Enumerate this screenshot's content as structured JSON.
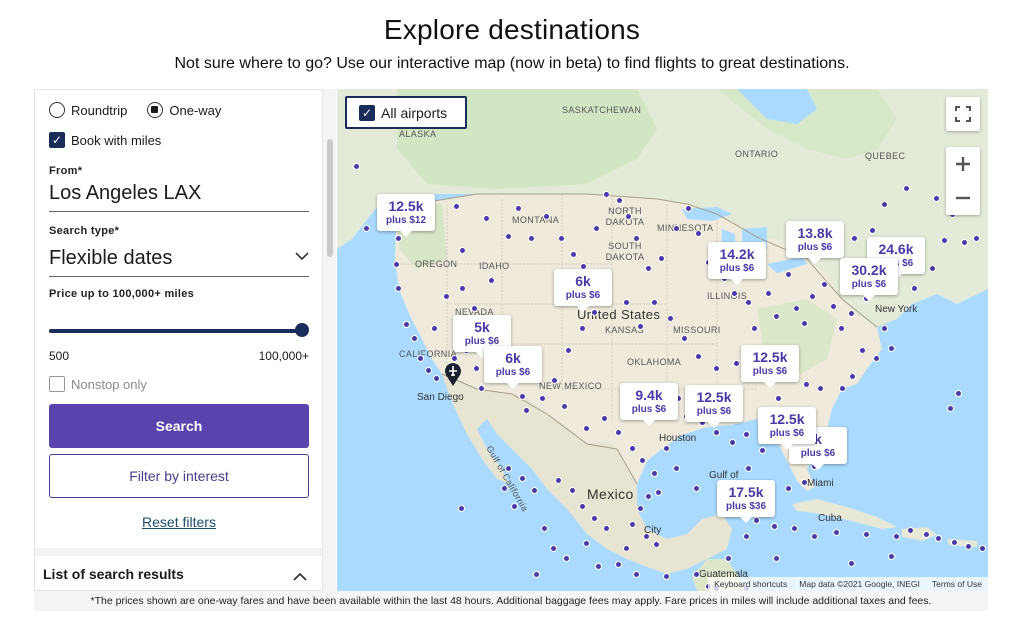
{
  "header": {
    "title": "Explore destinations",
    "subtitle": "Not sure where to go? Use our interactive map (now in beta) to find flights to great destinations."
  },
  "panel": {
    "trip_types": [
      {
        "label": "Roundtrip",
        "selected": false
      },
      {
        "label": "One-way",
        "selected": true
      }
    ],
    "book_with_miles": {
      "label": "Book with miles",
      "checked": true
    },
    "from": {
      "label": "From*",
      "value": "Los Angeles LAX"
    },
    "search_type": {
      "label": "Search type*",
      "value": "Flexible dates"
    },
    "price": {
      "label": "Price up to 100,000+ miles",
      "min": "500",
      "max": "100,000+",
      "level": 1.0
    },
    "nonstop": {
      "label": "Nonstop only",
      "checked": false
    },
    "search_button": "Search",
    "filter_button": "Filter by interest",
    "reset_link": "Reset filters",
    "results_header": "List of search results"
  },
  "map": {
    "all_airports": "All airports",
    "labels": {
      "alaska": "ALASKA",
      "saskatchewan": "SASKATCHEWAN",
      "ontario": "ONTARIO",
      "quebec": "QUEBEC",
      "montana": "MONTANA",
      "north_dakota": "NORTH DAKOTA",
      "minnesota": "MINNESOTA",
      "oregon": "OREGON",
      "idaho": "IDAHO",
      "south_dakota": "SOUTH DAKOTA",
      "nevada": "NEVADA",
      "illinois": "ILLINOIS",
      "united_states": "United States",
      "kansas": "KANSAS",
      "missouri": "MISSOURI",
      "california": "CALIFORNIA",
      "oklahoma": "OKLAHOMA",
      "new_mexico": "NEW MEXICO",
      "new_york": "New York",
      "san_diego": "San Diego",
      "houston": "Houston",
      "gulf_of_california": "Gulf of California",
      "gulf_of_mexico": "Gulf of",
      "mexico": "Mexico",
      "mexico_city": "City",
      "cuba": "Cuba",
      "miami": "Miami",
      "guatemala": "Guatemala"
    },
    "bubbles": [
      {
        "miles": "12.5k",
        "cash": "plus $12"
      },
      {
        "miles": "6k",
        "cash": "plus $6"
      },
      {
        "miles": "5k",
        "cash": "plus $6"
      },
      {
        "miles": "6k",
        "cash": "plus $6"
      },
      {
        "miles": "14.2k",
        "cash": "plus $6"
      },
      {
        "miles": "13.8k",
        "cash": "plus $6"
      },
      {
        "miles": "24.6k",
        "cash": "plus $6"
      },
      {
        "miles": "30.2k",
        "cash": "plus $6"
      },
      {
        "miles": "12.5k",
        "cash": "plus $6"
      },
      {
        "miles": "9.4k",
        "cash": "plus $6"
      },
      {
        "miles": "12.5k",
        "cash": "plus $6"
      },
      {
        "miles": "12.5k",
        "cash": "plus $6"
      },
      {
        "miles": "k",
        "cash": "plus $6"
      },
      {
        "miles": "17.5k",
        "cash": "plus $36"
      }
    ],
    "attribution": {
      "shortcuts": "Keyboard shortcuts",
      "data": "Map data ©2021 Google, INEGI",
      "terms": "Terms of Use"
    },
    "colors": {
      "land": "#f1efe6",
      "water": "#aadaff",
      "us_land": "#ece7d3",
      "forest": "#cfe5c2",
      "marker": "#4a3aa8"
    }
  },
  "footnote": "*The prices shown are one-way fares and have been available within the last 48 hours. Additional baggage fees may apply. Fare prices in miles will include additional taxes and fees."
}
